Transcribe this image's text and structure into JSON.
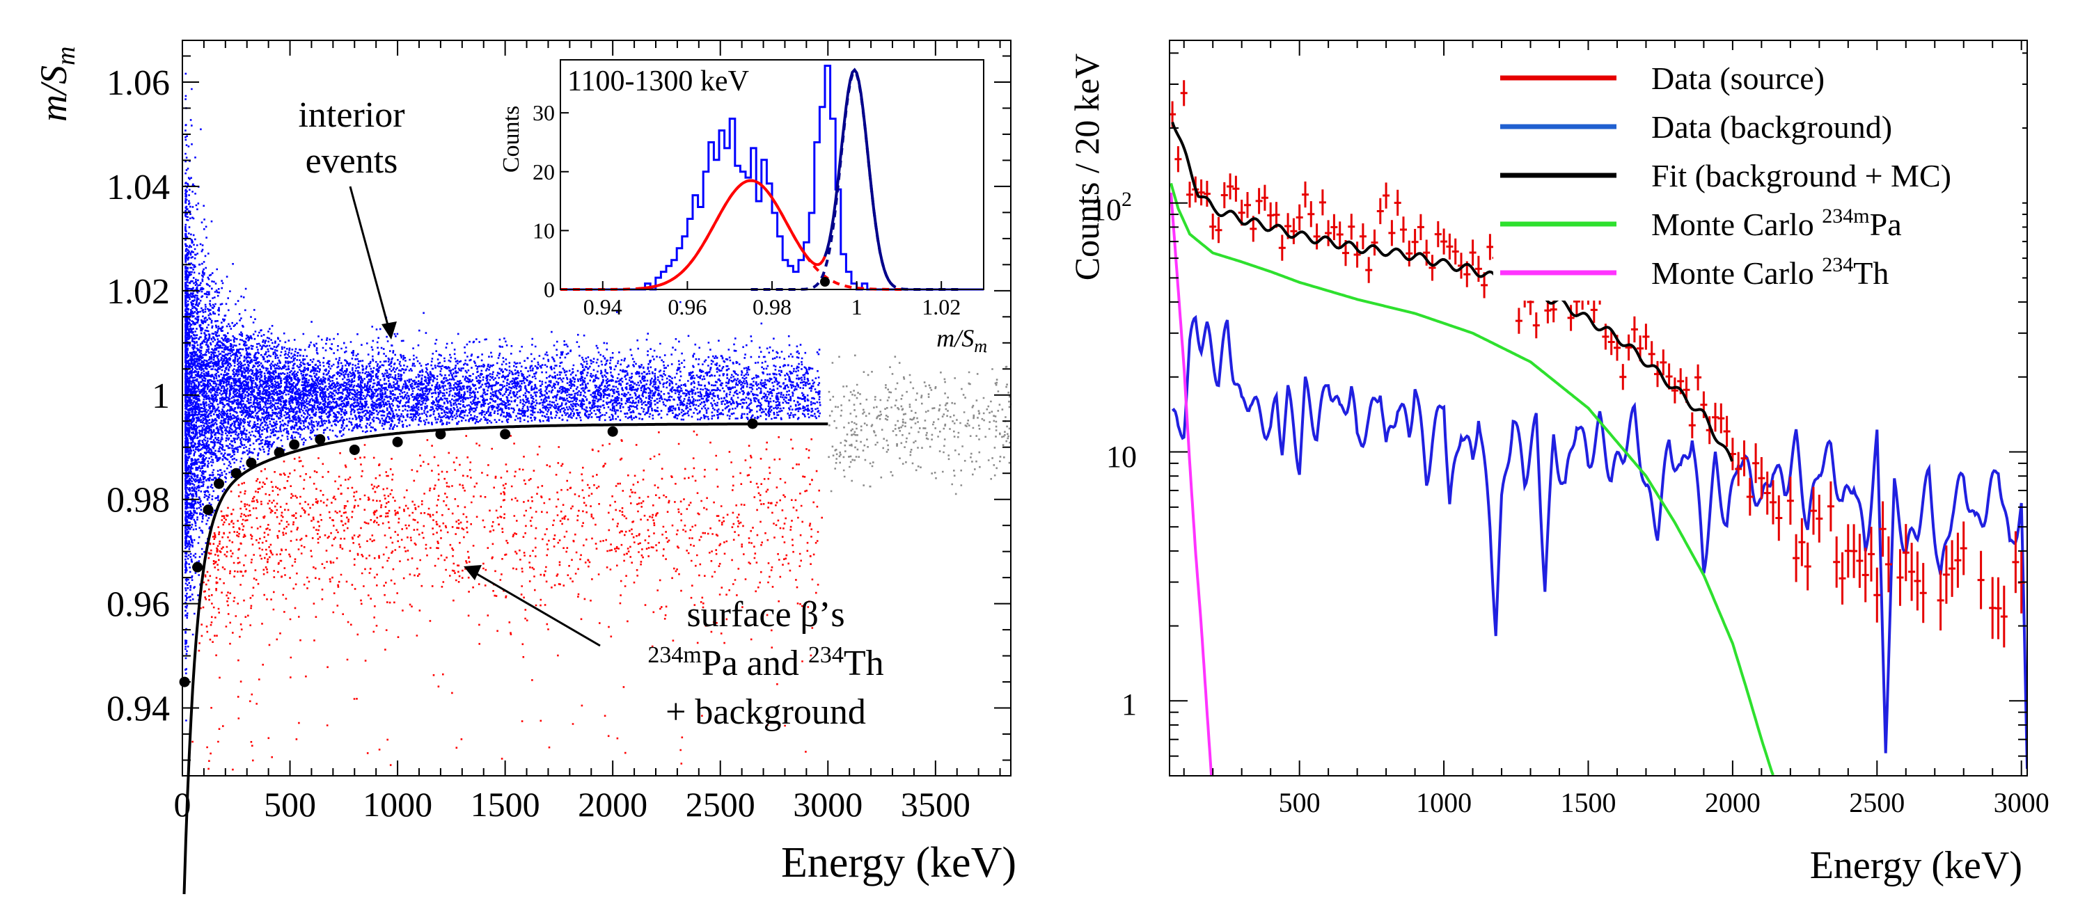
{
  "chart_data": [
    {
      "type": "scatter",
      "panel": "left",
      "xlabel": "Energy (keV)",
      "ylabel_main": "m/S",
      "ylabel_sub": "m",
      "xlim": [
        0,
        3850
      ],
      "ylim": [
        0.927,
        1.068
      ],
      "x_ticks": [
        0,
        500,
        1000,
        1500,
        2000,
        2500,
        3000,
        3500
      ],
      "x_tick_labels": [
        "0",
        "500",
        "1000",
        "1500",
        "2000",
        "2500",
        "3000",
        "3500"
      ],
      "y_ticks": [
        0.94,
        0.96,
        0.98,
        1.0,
        1.02,
        1.04,
        1.06
      ],
      "y_tick_labels": [
        "0.94",
        "0.96",
        "0.98",
        "1",
        "1.02",
        "1.04",
        "1.06"
      ],
      "series_colors": {
        "interior": "#0000ff",
        "surface": "#ff0000",
        "above_range": "#8c8c8c",
        "fit": "#000000"
      },
      "fit_points": [
        {
          "x": 10,
          "y": 0.945
        },
        {
          "x": 70,
          "y": 0.967
        },
        {
          "x": 120,
          "y": 0.978
        },
        {
          "x": 170,
          "y": 0.983
        },
        {
          "x": 250,
          "y": 0.985
        },
        {
          "x": 320,
          "y": 0.987
        },
        {
          "x": 450,
          "y": 0.989
        },
        {
          "x": 520,
          "y": 0.9905
        },
        {
          "x": 640,
          "y": 0.9915
        },
        {
          "x": 800,
          "y": 0.9895
        },
        {
          "x": 1000,
          "y": 0.991
        },
        {
          "x": 1200,
          "y": 0.9925
        },
        {
          "x": 1500,
          "y": 0.9925
        },
        {
          "x": 2000,
          "y": 0.993
        },
        {
          "x": 2650,
          "y": 0.9945
        }
      ],
      "annotations": {
        "interior": [
          "interior",
          "events"
        ],
        "surface_line1": "surface β’s",
        "surface_iso1_sup": "234m",
        "surface_iso1": "Pa and ",
        "surface_iso2_sup": "234",
        "surface_iso2": "Th",
        "surface_line3": "+ background"
      },
      "inset": {
        "title": "1100-1300 keV",
        "ylabel": "Counts",
        "xlabel_main": "m/S",
        "xlabel_sub": "m",
        "xlim": [
          0.93,
          1.03
        ],
        "ylim": [
          0,
          39
        ],
        "x_ticks": [
          0.94,
          0.96,
          0.98,
          1.0,
          1.02
        ],
        "x_tick_labels": [
          "0.94",
          "0.96",
          "0.98",
          "1",
          "1.02"
        ],
        "y_ticks": [
          0,
          10,
          20,
          30
        ],
        "y_tick_labels": [
          "0",
          "10",
          "20",
          "30"
        ],
        "gauss_surface": {
          "amp": 18.5,
          "mean": 0.975,
          "sigma": 0.0085,
          "color": "#ff0000"
        },
        "gauss_interior": {
          "amp": 37,
          "mean": 0.9995,
          "sigma": 0.0032,
          "color": "#00008b"
        },
        "marker": {
          "x": 0.9925,
          "y": 1.3
        },
        "hist_color": "#0000ff",
        "hist_counts": [
          0,
          0,
          0,
          0,
          0,
          0,
          0,
          0,
          0,
          0,
          0,
          0,
          0,
          0,
          0,
          0,
          1,
          0,
          2,
          3,
          4,
          5,
          7,
          9,
          12,
          16,
          14,
          20,
          25,
          22,
          27,
          24,
          29,
          21,
          20,
          19,
          24,
          15,
          22,
          18,
          13,
          9,
          5,
          4,
          3,
          5,
          8,
          13,
          25,
          31,
          38,
          29,
          17,
          6,
          3,
          1,
          0,
          1,
          0,
          0,
          0,
          0,
          0,
          0,
          0,
          0,
          0,
          0,
          0,
          0,
          0,
          0,
          0,
          0,
          0,
          0,
          0,
          0,
          0,
          0
        ]
      }
    },
    {
      "type": "line",
      "panel": "right",
      "xlabel": "Energy (keV)",
      "ylabel": "Counts / 20 keV",
      "yscale": "log",
      "xlim": [
        50,
        3020
      ],
      "ylim": [
        0.5,
        450
      ],
      "x_ticks": [
        500,
        1000,
        1500,
        2000,
        2500,
        3000
      ],
      "x_tick_labels": [
        "500",
        "1000",
        "1500",
        "2000",
        "2500",
        "3000"
      ],
      "y_tick_labels": {
        "one": "1",
        "ten": "10",
        "hundred_base": "10",
        "hundred_exp": "2"
      },
      "legend": [
        {
          "label": "Data (source)",
          "color": "#e60000"
        },
        {
          "label": "Data (background)",
          "color": "#2060d0"
        },
        {
          "label": "Fit (background + MC)",
          "color": "#000000"
        },
        {
          "label": "Monte Carlo ",
          "sup": "234m",
          "tail": "Pa",
          "color": "#2ee02e"
        },
        {
          "label": "Monte Carlo ",
          "sup": "234",
          "tail": "Th",
          "color": "#ff33ff"
        }
      ],
      "series": [
        {
          "name": "Data (source)",
          "color": "#e60000",
          "style": "points with error bars",
          "x": [
            60,
            100,
            150,
            200,
            300,
            400,
            500,
            600,
            700,
            800,
            900,
            1000,
            1100,
            1200,
            1300,
            1400,
            1500,
            1600,
            1700,
            1800,
            1900,
            2000,
            2100,
            2200,
            2300,
            2400,
            2500,
            2600,
            2700,
            2800,
            2900,
            3000
          ],
          "y": [
            220,
            160,
            110,
            98,
            92,
            85,
            80,
            76,
            70,
            72,
            66,
            62,
            57,
            52,
            47,
            42,
            36,
            30,
            25,
            21,
            16,
            11,
            6.5,
            5,
            5,
            4,
            3.8,
            3.5,
            3,
            4,
            3,
            3
          ]
        },
        {
          "name": "Fit (background + MC)",
          "color": "#000000",
          "x": [
            60,
            100,
            150,
            200,
            300,
            400,
            500,
            600,
            700,
            800,
            900,
            1000,
            1100,
            1200,
            1300,
            1400,
            1500,
            1600,
            1700,
            1800,
            1900,
            2000
          ],
          "y": [
            220,
            160,
            110,
            95,
            86,
            80,
            74,
            70,
            66,
            64,
            61,
            57,
            54,
            49,
            44,
            40,
            34,
            29,
            23,
            18,
            14,
            9
          ]
        },
        {
          "name": "Monte Carlo 234mPa",
          "color": "#2ee02e",
          "x": [
            55,
            80,
            120,
            200,
            300,
            400,
            500,
            700,
            900,
            1100,
            1300,
            1500,
            1700,
            1800,
            1900,
            2000,
            2050,
            2100,
            2140
          ],
          "y": [
            120,
            95,
            75,
            63,
            58,
            53,
            48,
            41,
            36,
            30,
            23,
            15,
            8,
            5.2,
            3.2,
            1.7,
            1.1,
            0.7,
            0.5
          ]
        },
        {
          "name": "Monte Carlo 234Th",
          "color": "#ff33ff",
          "x": [
            55,
            80,
            100,
            120,
            140,
            160,
            180,
            195
          ],
          "y": [
            110,
            45,
            22,
            9,
            4,
            2,
            0.9,
            0.5
          ]
        },
        {
          "name": "Data (background)",
          "color": "#2020e0",
          "x": [
            60,
            80,
            100,
            120,
            140,
            160,
            180,
            200,
            220,
            250,
            270,
            300,
            330,
            360,
            400,
            420,
            440,
            460,
            500,
            520,
            560,
            600,
            640,
            680,
            700,
            740,
            780,
            800,
            840,
            880,
            900,
            940,
            960,
            1000,
            1020,
            1060,
            1100,
            1120,
            1160,
            1180,
            1200,
            1240,
            1280,
            1320,
            1350,
            1380,
            1420,
            1460,
            1500,
            1540,
            1580,
            1620,
            1660,
            1700,
            1740,
            1780,
            1820,
            1860,
            1900,
            1940,
            1980,
            2020,
            2060,
            2100,
            2140,
            2180,
            2220,
            2260,
            2300,
            2340,
            2380,
            2420,
            2460,
            2500,
            2530,
            2560,
            2600,
            2640,
            2680,
            2720,
            2760,
            2800,
            2840,
            2880,
            2920,
            2960,
            3000,
            3020
          ],
          "y": [
            14,
            12,
            13,
            26,
            34,
            28,
            30,
            24,
            20,
            32,
            22,
            15,
            17,
            14,
            12,
            16,
            11,
            17,
            9,
            18,
            12,
            20,
            14,
            18,
            11,
            13,
            19,
            10,
            16,
            12,
            19,
            8,
            11,
            17,
            6,
            13,
            9,
            15,
            5,
            2,
            6,
            14,
            8,
            13,
            3,
            11,
            7,
            14,
            9,
            13,
            8,
            10,
            14,
            7,
            5,
            11,
            8,
            12,
            3.5,
            9,
            5,
            10,
            8,
            6,
            9,
            7,
            11,
            5,
            9,
            10,
            6,
            8,
            4,
            11,
            0.7,
            7,
            4,
            5,
            8,
            3,
            6,
            8,
            5,
            6,
            9,
            4,
            6,
            0.5
          ]
        }
      ]
    }
  ]
}
